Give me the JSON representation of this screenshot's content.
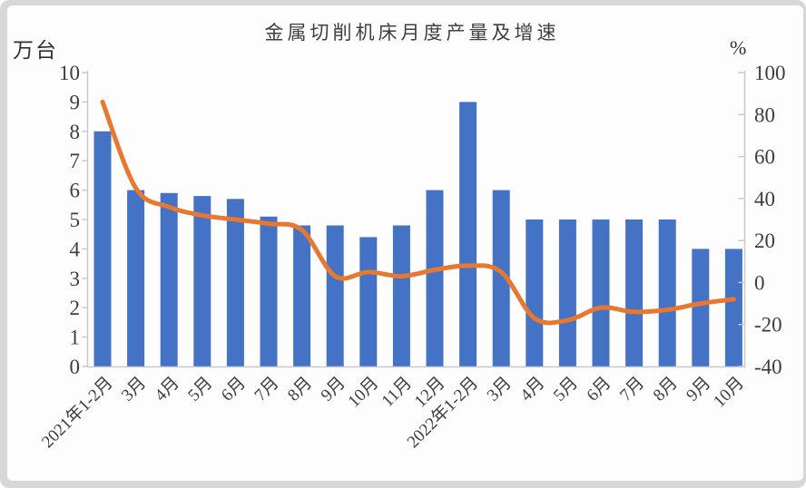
{
  "window": {
    "title": "金属切削机床月度产量及增速"
  },
  "labels": {
    "left_unit": "万台",
    "right_unit": "%"
  },
  "chart_data": {
    "type": "bar",
    "subtype": "combo-bar-line-dual-axis",
    "title": "金属切削机床月度产量及增速",
    "categories": [
      "2021年1-2月",
      "3月",
      "4月",
      "5月",
      "6月",
      "7月",
      "8月",
      "9月",
      "10月",
      "11月",
      "12月",
      "2022年1-2月",
      "3月",
      "4月",
      "5月",
      "6月",
      "7月",
      "8月",
      "9月",
      "10月"
    ],
    "series": [
      {
        "name": "月度产量",
        "type": "bar",
        "axis": "left",
        "unit": "万台",
        "color": "#4472c4",
        "values": [
          8,
          6,
          5.9,
          5.8,
          5.7,
          5.1,
          4.8,
          4.8,
          4.4,
          4.8,
          6,
          9,
          6,
          5,
          5,
          5,
          5,
          5,
          4,
          4
        ]
      },
      {
        "name": "增速",
        "type": "line",
        "axis": "right",
        "unit": "%",
        "color": "#e9782f",
        "values": [
          86,
          45,
          36,
          32,
          30,
          28,
          25,
          3,
          5,
          3,
          6,
          8,
          5,
          -17,
          -18,
          -12,
          -14,
          -13,
          -10,
          -8
        ]
      }
    ],
    "left_axis": {
      "unit": "万台",
      "min": 0,
      "max": 10,
      "ticks": [
        10,
        9,
        8,
        7,
        6,
        5,
        4,
        3,
        2,
        1,
        0
      ]
    },
    "right_axis": {
      "unit": "%",
      "min": -40,
      "max": 100,
      "ticks": [
        100,
        80,
        60,
        40,
        20,
        0,
        -20,
        -40
      ]
    },
    "x_label_rotation": -45,
    "grid": false,
    "legend": "none",
    "colors": {
      "bar": "#4472c4",
      "line": "#e9782f",
      "axis": "#c9c9c9",
      "text": "#3d3d3d"
    }
  }
}
